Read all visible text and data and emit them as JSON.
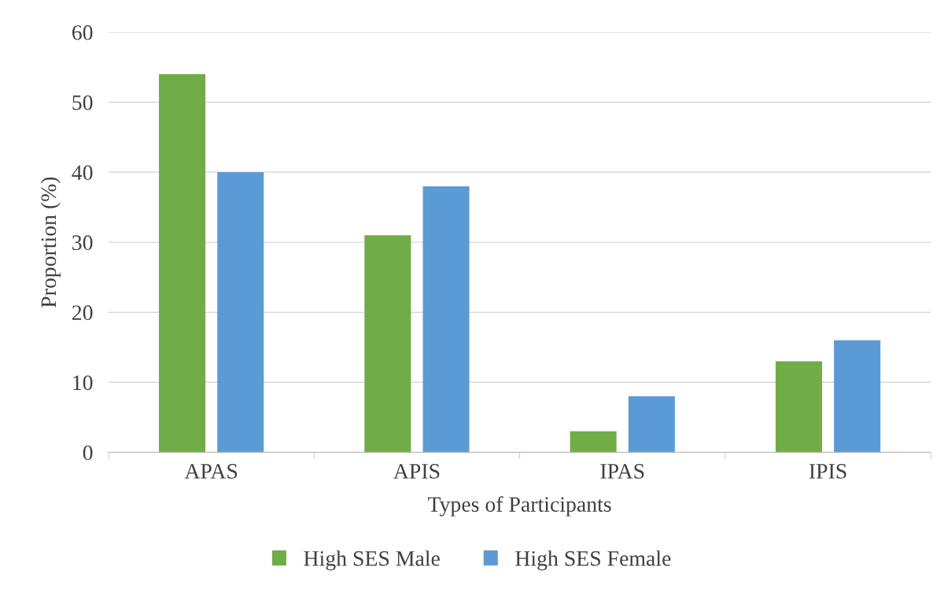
{
  "chart_data": {
    "type": "bar",
    "xlabel": "Types of Participants",
    "ylabel": "Proportion (%)",
    "categories": [
      "APAS",
      "APIS",
      "IPAS",
      "IPIS"
    ],
    "series": [
      {
        "name": "High SES Male",
        "color": "#70ad47",
        "values": [
          54,
          31,
          3,
          13
        ]
      },
      {
        "name": "High SES Female",
        "color": "#5b9bd5",
        "values": [
          40,
          38,
          8,
          16
        ]
      }
    ],
    "ylim": [
      0,
      60
    ],
    "yticks": [
      0,
      10,
      20,
      30,
      40,
      50,
      60
    ],
    "grid": "y",
    "legend": "bottom"
  }
}
